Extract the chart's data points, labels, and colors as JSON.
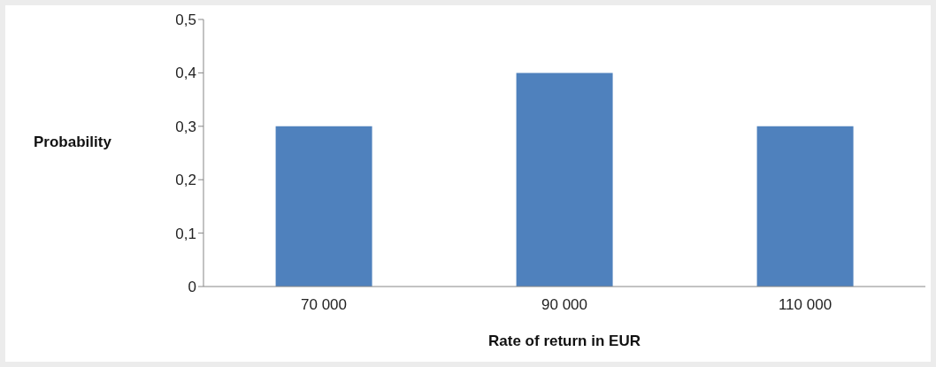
{
  "chart_data": {
    "type": "bar",
    "xlabel": "Rate of return in EUR",
    "ylabel": "Probability",
    "categories": [
      "70 000",
      "90 000",
      "110 000"
    ],
    "values": [
      0.3,
      0.4,
      0.3
    ],
    "color": "#4f81bd",
    "ylim": [
      0,
      0.5
    ],
    "yticks": [
      0,
      {
        "value": 0.1,
        "label": "0,1"
      },
      {
        "value": 0.2,
        "label": "0,2"
      },
      {
        "value": 0.3,
        "label": "0,3"
      },
      {
        "value": 0.4,
        "label": "0,4"
      },
      {
        "value": 0.5,
        "label": "0,5"
      }
    ]
  }
}
